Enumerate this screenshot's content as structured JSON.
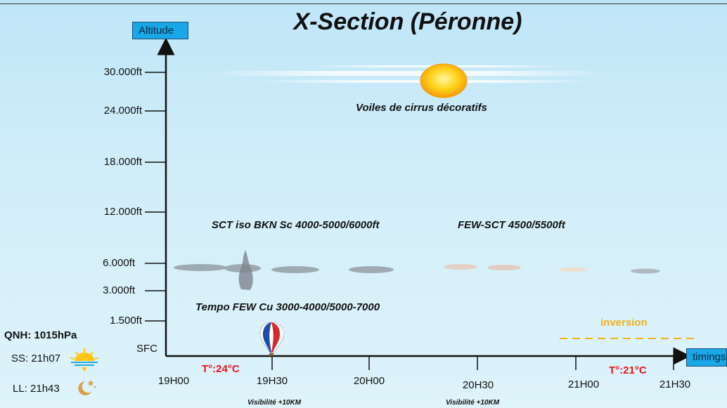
{
  "title": "X-Section (Péronne)",
  "axes": {
    "y_label": "Altitude",
    "x_label": "timings",
    "y_ticks": [
      "30.000ft",
      "24.000ft",
      "18.000ft",
      "12.000ft",
      "6.000ft",
      "3.000ft",
      "1.500ft",
      "SFC"
    ],
    "x_ticks": [
      "19H00",
      "19H30",
      "20H00",
      "20H30",
      "21H00",
      "21H30"
    ]
  },
  "annotations": {
    "cirrus": "Voiles de cirrus décoratifs",
    "sct": "SCT iso BKN Sc 4000-5000/6000ft",
    "few_sct": "FEW-SCT 4500/5500ft",
    "tempo": "Tempo FEW Cu  3000-4000/5000-7000",
    "inversion": "inversion",
    "temp_start": "T°:24°C",
    "temp_end": "T°:21°C",
    "visibility_1": "Visibilité +10KM",
    "visibility_2": "Visibilité +10KM"
  },
  "side_info": {
    "qnh": "QNH: 1015hPa",
    "sunset": "SS: 21h07",
    "moonrise": "LL: 21h43"
  },
  "icons": {
    "sun": "sun-icon",
    "balloon": "hot-air-balloon-icon",
    "sunset": "sunset-icon",
    "moon": "moon-stars-icon"
  },
  "colors": {
    "axis": "#111111",
    "label_box": "#1aa7e8",
    "temperature": "#e8141c",
    "inversion": "#f2b01e"
  }
}
